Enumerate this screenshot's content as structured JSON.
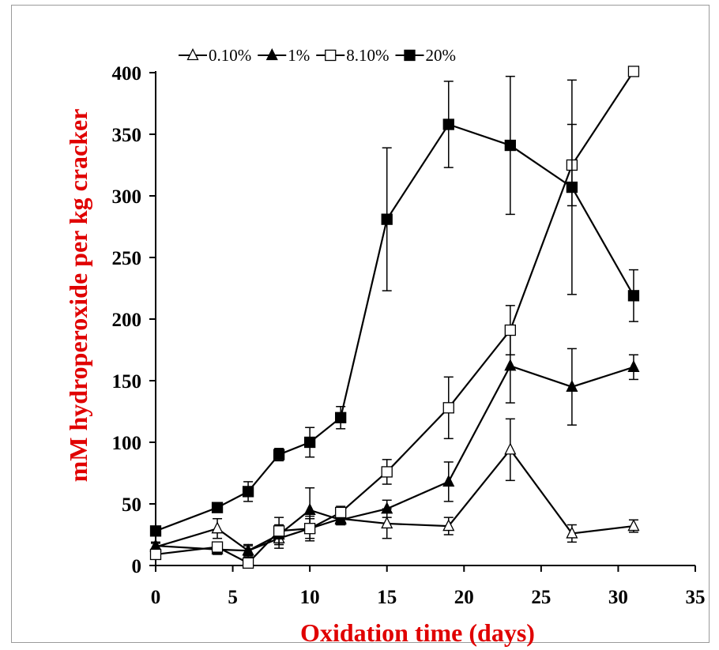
{
  "chart_data": {
    "type": "line",
    "xlabel": "Oxidation time (days)",
    "ylabel": "mM hydroperoxide per kg cracker",
    "axis_label_color": "#e00000",
    "xlim": [
      0,
      35
    ],
    "ylim": [
      0,
      400
    ],
    "xticks": [
      "0",
      "5",
      "10",
      "15",
      "20",
      "25",
      "30",
      "35"
    ],
    "yticks": [
      "0",
      "50",
      "100",
      "150",
      "200",
      "250",
      "300",
      "350",
      "400"
    ],
    "grid": false,
    "legend_position": "top-left",
    "series": [
      {
        "name": "0.10%",
        "marker": "triangle-open",
        "x": [
          0,
          4,
          6,
          8,
          10,
          12,
          15,
          19,
          23,
          27,
          31
        ],
        "y": [
          15,
          30,
          12,
          22,
          30,
          38,
          34,
          32,
          94,
          26,
          32
        ],
        "err": [
          3,
          8,
          4,
          8,
          10,
          4,
          12,
          7,
          25,
          7,
          5
        ]
      },
      {
        "name": "1%",
        "marker": "triangle-filled",
        "x": [
          0,
          4,
          6,
          8,
          10,
          12,
          15,
          19,
          23,
          27,
          31
        ],
        "y": [
          16,
          13,
          12,
          25,
          45,
          37,
          46,
          68,
          162,
          145,
          161
        ],
        "err": [
          3,
          4,
          5,
          8,
          18,
          4,
          7,
          16,
          30,
          31,
          10
        ]
      },
      {
        "name": "8.10%",
        "marker": "square-open",
        "x": [
          0,
          4,
          6,
          8,
          10,
          12,
          15,
          19,
          23,
          27,
          31
        ],
        "y": [
          9,
          15,
          2,
          28,
          30,
          43,
          76,
          128,
          191,
          325,
          401
        ],
        "err": [
          2,
          3,
          2,
          11,
          8,
          5,
          10,
          25,
          20,
          33,
          2
        ]
      },
      {
        "name": "20%",
        "marker": "square-filled",
        "x": [
          0,
          4,
          6,
          8,
          10,
          12,
          15,
          19,
          23,
          27,
          31
        ],
        "y": [
          28,
          47,
          60,
          90,
          100,
          120,
          281,
          358,
          341,
          307,
          219
        ],
        "err": [
          3,
          3,
          8,
          5,
          12,
          9,
          58,
          35,
          56,
          87,
          21
        ]
      }
    ]
  }
}
